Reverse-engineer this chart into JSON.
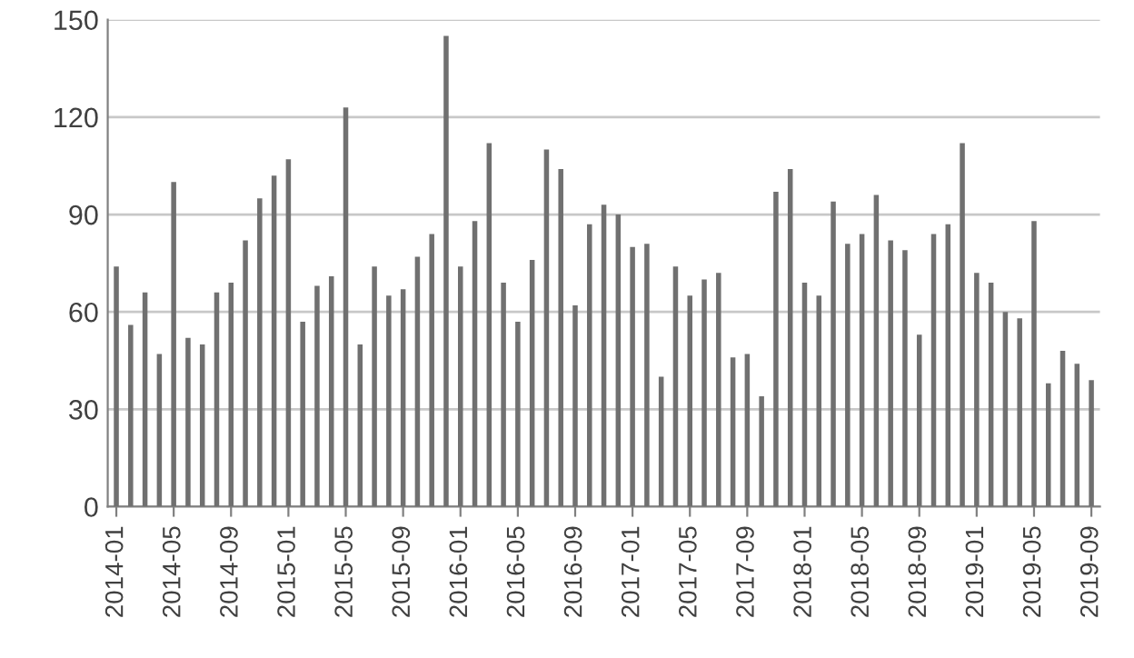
{
  "chart_data": {
    "type": "bar",
    "categories": [
      "2014-01",
      null,
      null,
      null,
      "2014-05",
      null,
      null,
      null,
      "2014-09",
      null,
      null,
      null,
      "2015-01",
      null,
      null,
      null,
      "2015-05",
      null,
      null,
      null,
      "2015-09",
      null,
      null,
      null,
      "2016-01",
      null,
      null,
      null,
      "2016-05",
      null,
      null,
      null,
      "2016-09",
      null,
      null,
      null,
      "2017-01",
      null,
      null,
      null,
      "2017-05",
      null,
      null,
      null,
      "2017-09",
      null,
      null,
      null,
      "2018-01",
      null,
      null,
      null,
      "2018-05",
      null,
      null,
      null,
      "2018-09",
      null,
      null,
      null,
      "2019-01",
      null,
      null,
      null,
      "2019-05",
      null,
      null,
      null,
      "2019-09"
    ],
    "values": [
      74,
      56,
      66,
      47,
      100,
      52,
      50,
      66,
      69,
      82,
      95,
      102,
      107,
      57,
      68,
      71,
      123,
      50,
      74,
      65,
      67,
      77,
      84,
      145,
      74,
      88,
      112,
      69,
      57,
      76,
      110,
      104,
      62,
      87,
      93,
      90,
      80,
      81,
      40,
      74,
      65,
      70,
      72,
      46,
      47,
      34,
      97,
      104,
      69,
      65,
      94,
      81,
      84,
      96,
      82,
      79,
      53,
      84,
      87,
      112,
      72,
      69,
      60,
      58,
      88,
      38,
      48,
      44,
      39
    ],
    "color": "#707070",
    "ylim": [
      0,
      150
    ],
    "yticks": [
      0,
      30,
      60,
      90,
      120,
      150
    ],
    "grid": "y"
  }
}
